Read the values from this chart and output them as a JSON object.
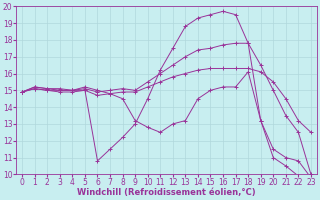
{
  "background_color": "#c8eef0",
  "grid_color": "#b0d8dc",
  "line_color": "#993399",
  "xlabel": "Windchill (Refroidissement éolien,°C)",
  "xlabel_fontsize": 6,
  "tick_fontsize": 5.5,
  "xlim": [
    -0.5,
    23.5
  ],
  "ylim": [
    10,
    20
  ],
  "yticks": [
    10,
    11,
    12,
    13,
    14,
    15,
    16,
    17,
    18,
    19,
    20
  ],
  "xticks": [
    0,
    1,
    2,
    3,
    4,
    5,
    6,
    7,
    8,
    9,
    10,
    11,
    12,
    13,
    14,
    15,
    16,
    17,
    18,
    19,
    20,
    21,
    22,
    23
  ],
  "lines": [
    {
      "x": [
        0,
        1,
        2,
        3,
        4,
        5,
        6,
        7,
        8,
        9,
        10,
        11,
        12,
        13,
        14,
        15,
        16,
        17,
        18,
        19,
        20,
        21,
        22,
        23
      ],
      "y": [
        14.9,
        15.2,
        15.1,
        15.0,
        15.0,
        15.0,
        10.8,
        11.5,
        12.2,
        13.0,
        14.5,
        16.2,
        17.5,
        18.8,
        19.3,
        19.5,
        19.7,
        19.5,
        17.8,
        13.2,
        11.0,
        10.5,
        9.9,
        9.8
      ]
    },
    {
      "x": [
        0,
        1,
        2,
        3,
        4,
        5,
        6,
        7,
        8,
        9,
        10,
        11,
        12,
        13,
        14,
        15,
        16,
        17,
        18,
        19,
        20,
        21,
        22,
        23
      ],
      "y": [
        14.9,
        15.2,
        15.1,
        15.1,
        15.0,
        15.1,
        14.9,
        15.0,
        15.1,
        15.0,
        15.5,
        16.0,
        16.5,
        17.0,
        17.4,
        17.5,
        17.7,
        17.8,
        17.8,
        16.5,
        15.0,
        13.5,
        12.5,
        10.0
      ]
    },
    {
      "x": [
        0,
        1,
        2,
        3,
        4,
        5,
        6,
        7,
        8,
        9,
        10,
        11,
        12,
        13,
        14,
        15,
        16,
        17,
        18,
        19,
        20,
        21,
        22,
        23
      ],
      "y": [
        14.9,
        15.1,
        15.0,
        15.0,
        15.0,
        15.2,
        15.0,
        14.8,
        14.9,
        14.9,
        15.2,
        15.5,
        15.8,
        16.0,
        16.2,
        16.3,
        16.3,
        16.3,
        16.3,
        16.1,
        15.5,
        14.5,
        13.2,
        12.5
      ]
    },
    {
      "x": [
        0,
        1,
        2,
        3,
        4,
        5,
        6,
        7,
        8,
        9,
        10,
        11,
        12,
        13,
        14,
        15,
        16,
        17,
        18,
        19,
        20,
        21,
        22,
        23
      ],
      "y": [
        14.9,
        15.1,
        15.0,
        14.9,
        14.9,
        15.0,
        14.7,
        14.8,
        14.5,
        13.2,
        12.8,
        12.5,
        13.0,
        13.2,
        14.5,
        15.0,
        15.2,
        15.2,
        16.1,
        13.2,
        11.5,
        11.0,
        10.8,
        9.8
      ]
    }
  ]
}
